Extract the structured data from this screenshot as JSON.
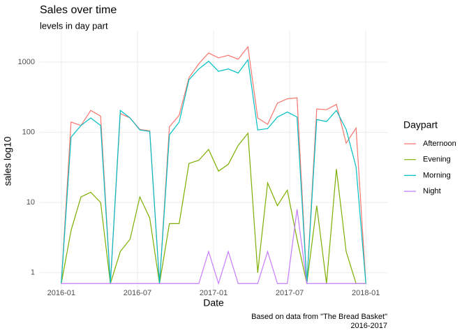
{
  "chart_data": {
    "type": "line",
    "title": "Sales over time",
    "subtitle": "levels in day part",
    "x_label": "Date",
    "y_label": "sales log10",
    "legend_title": "Daypart",
    "caption": [
      "Based on data from \"The Bread Basket\"",
      "2016-2017"
    ],
    "x": [
      0,
      0.77,
      1.55,
      2.32,
      3.1,
      3.87,
      4.65,
      5.42,
      6.19,
      6.97,
      7.74,
      8.52,
      9.29,
      10.06,
      10.84,
      11.61,
      12.39,
      13.16,
      13.94,
      14.71,
      15.48,
      16.26,
      17.03,
      17.81,
      18.58,
      19.35,
      20.13,
      20.9,
      21.68,
      22.45,
      23.23,
      24
    ],
    "series": [
      {
        "name": "Afternoon",
        "color": "#F8766D",
        "values": [
          0.7,
          140,
          125,
          205,
          170,
          0.7,
          185,
          160,
          110,
          105,
          0.7,
          120,
          175,
          600,
          950,
          1350,
          1150,
          1250,
          1100,
          1650,
          160,
          130,
          260,
          300,
          310,
          0.7,
          215,
          210,
          250,
          70,
          115,
          0.7
        ]
      },
      {
        "name": "Evening",
        "color": "#7CAE00",
        "values": [
          0.7,
          4,
          12,
          14,
          10,
          0.7,
          2,
          3,
          12,
          6,
          0.7,
          5,
          5,
          36,
          40,
          57,
          28,
          35,
          65,
          97,
          1,
          19,
          9,
          15,
          3,
          0.7,
          9,
          0.7,
          30,
          2,
          0.7,
          0.7
        ]
      },
      {
        "name": "Morning",
        "color": "#00BFC4",
        "values": [
          0.7,
          85,
          125,
          160,
          125,
          0.7,
          205,
          160,
          108,
          103,
          0.7,
          92,
          140,
          560,
          800,
          1030,
          740,
          800,
          700,
          1080,
          108,
          113,
          165,
          195,
          165,
          0.7,
          152,
          142,
          205,
          110,
          32,
          0.7
        ]
      },
      {
        "name": "Night",
        "color": "#C77CFF",
        "values": [
          0.7,
          0.7,
          0.7,
          0.7,
          0.7,
          0.7,
          0.7,
          0.7,
          0.7,
          0.7,
          0.7,
          0.7,
          0.7,
          0.7,
          0.7,
          2,
          0.7,
          2,
          0.7,
          0.7,
          0.7,
          2,
          0.7,
          0.7,
          8,
          0.7,
          0.7,
          0.7,
          0.7,
          0.7,
          0.7,
          0.7
        ]
      }
    ],
    "xlim": [
      -1.2,
      25.2
    ],
    "xticks": [
      {
        "value": 0,
        "label": "2016-01"
      },
      {
        "value": 6,
        "label": "2016-07"
      },
      {
        "value": 12,
        "label": "2017-01"
      },
      {
        "value": 18,
        "label": "2017-07"
      },
      {
        "value": 24,
        "label": "2018-01"
      }
    ],
    "ylim": [
      0.6,
      2500
    ],
    "yticks": [
      1,
      10,
      100,
      1000
    ],
    "log_y": true,
    "grid": true,
    "legend": "right"
  }
}
